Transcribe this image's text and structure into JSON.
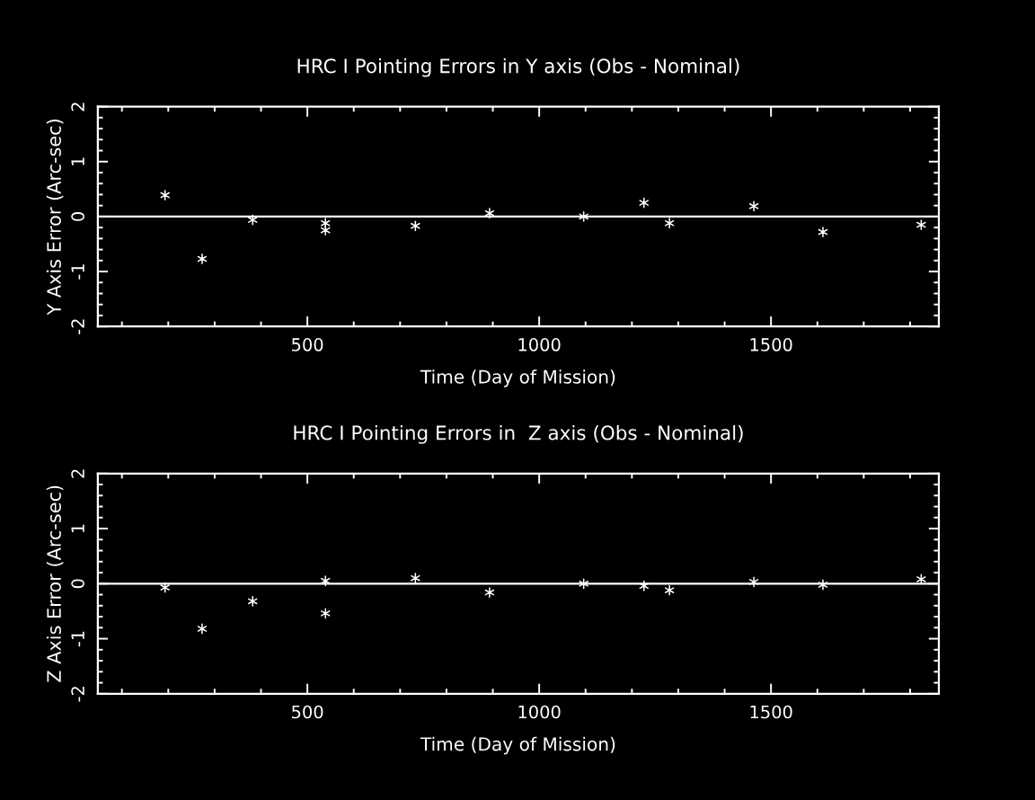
{
  "chart_data": [
    {
      "type": "scatter",
      "title": "HRC I Pointing Errors in Y axis (Obs - Nominal)",
      "xlabel": "Time (Day of Mission)",
      "ylabel": "Y Axis Error (Arc-sec)",
      "x": [
        193,
        273,
        382,
        539,
        539,
        733,
        893,
        1096,
        1226,
        1281,
        1463,
        1612,
        1824
      ],
      "series": [
        {
          "color": "#ffffff",
          "values": [
            0.39,
            -0.77,
            -0.06,
            -0.12,
            -0.25,
            -0.17,
            0.06,
            0.0,
            0.25,
            -0.12,
            0.19,
            -0.28,
            -0.15
          ]
        }
      ],
      "marker": "cross",
      "xlim": [
        48,
        1862
      ],
      "ylim": [
        -2,
        2
      ],
      "xticks": [
        {
          "value": 100,
          "label": null
        },
        {
          "value": 200,
          "label": null
        },
        {
          "value": 300,
          "label": null
        },
        {
          "value": 400,
          "label": null
        },
        500,
        {
          "value": 600,
          "label": null
        },
        {
          "value": 700,
          "label": null
        },
        {
          "value": 800,
          "label": null
        },
        {
          "value": 900,
          "label": null
        },
        1000,
        {
          "value": 1100,
          "label": null
        },
        {
          "value": 1200,
          "label": null
        },
        {
          "value": 1300,
          "label": null
        },
        {
          "value": 1400,
          "label": null
        },
        1500,
        {
          "value": 1600,
          "label": null
        },
        {
          "value": 1700,
          "label": null
        },
        {
          "value": 1800,
          "label": null
        }
      ],
      "yticks": [
        -2,
        {
          "value": -1.8,
          "label": null
        },
        {
          "value": -1.6,
          "label": null
        },
        {
          "value": -1.4,
          "label": null
        },
        {
          "value": -1.2,
          "label": null
        },
        -1,
        {
          "value": -0.8,
          "label": null
        },
        {
          "value": -0.6,
          "label": null
        },
        {
          "value": -0.4,
          "label": null
        },
        {
          "value": -0.2,
          "label": null
        },
        0,
        {
          "value": 0.2,
          "label": null
        },
        {
          "value": 0.4,
          "label": null
        },
        {
          "value": 0.6,
          "label": null
        },
        {
          "value": 0.8,
          "label": null
        },
        1,
        {
          "value": 1.2,
          "label": null
        },
        {
          "value": 1.4,
          "label": null
        },
        {
          "value": 1.6,
          "label": null
        },
        {
          "value": 1.8,
          "label": null
        },
        2
      ],
      "ref_lines": [
        {
          "axis": "y",
          "value": 0,
          "color": "#ffffff",
          "line_style": "solid"
        }
      ]
    },
    {
      "type": "scatter",
      "title": "HRC I Pointing Errors in  Z axis (Obs - Nominal)",
      "xlabel": "Time (Day of Mission)",
      "ylabel": "Z Axis Error (Arc-sec)",
      "x": [
        193,
        273,
        382,
        539,
        539,
        733,
        893,
        1096,
        1226,
        1281,
        1463,
        1612,
        1824
      ],
      "series": [
        {
          "color": "#ffffff",
          "values": [
            -0.07,
            -0.82,
            -0.32,
            0.05,
            -0.54,
            0.1,
            -0.16,
            0.0,
            -0.04,
            -0.12,
            0.03,
            -0.02,
            0.08
          ]
        }
      ],
      "marker": "cross",
      "xlim": [
        48,
        1862
      ],
      "ylim": [
        -2,
        2
      ],
      "xticks": [
        {
          "value": 100,
          "label": null
        },
        {
          "value": 200,
          "label": null
        },
        {
          "value": 300,
          "label": null
        },
        {
          "value": 400,
          "label": null
        },
        500,
        {
          "value": 600,
          "label": null
        },
        {
          "value": 700,
          "label": null
        },
        {
          "value": 800,
          "label": null
        },
        {
          "value": 900,
          "label": null
        },
        1000,
        {
          "value": 1100,
          "label": null
        },
        {
          "value": 1200,
          "label": null
        },
        {
          "value": 1300,
          "label": null
        },
        {
          "value": 1400,
          "label": null
        },
        1500,
        {
          "value": 1600,
          "label": null
        },
        {
          "value": 1700,
          "label": null
        },
        {
          "value": 1800,
          "label": null
        }
      ],
      "yticks": [
        -2,
        {
          "value": -1.8,
          "label": null
        },
        {
          "value": -1.6,
          "label": null
        },
        {
          "value": -1.4,
          "label": null
        },
        {
          "value": -1.2,
          "label": null
        },
        -1,
        {
          "value": -0.8,
          "label": null
        },
        {
          "value": -0.6,
          "label": null
        },
        {
          "value": -0.4,
          "label": null
        },
        {
          "value": -0.2,
          "label": null
        },
        0,
        {
          "value": 0.2,
          "label": null
        },
        {
          "value": 0.4,
          "label": null
        },
        {
          "value": 0.6,
          "label": null
        },
        {
          "value": 0.8,
          "label": null
        },
        1,
        {
          "value": 1.2,
          "label": null
        },
        {
          "value": 1.4,
          "label": null
        },
        {
          "value": 1.6,
          "label": null
        },
        {
          "value": 1.8,
          "label": null
        },
        2
      ],
      "ref_lines": [
        {
          "axis": "y",
          "value": 0,
          "color": "#ffffff",
          "line_style": "solid"
        }
      ]
    }
  ]
}
